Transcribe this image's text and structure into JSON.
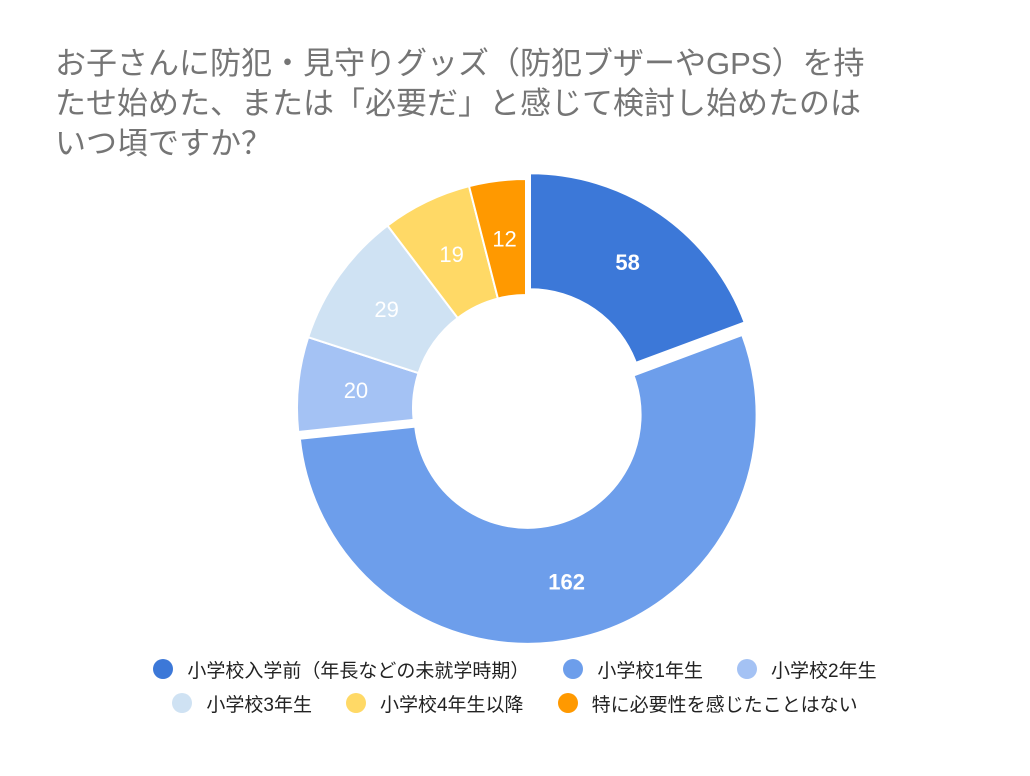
{
  "chart_data": {
    "type": "pie",
    "donut": true,
    "title_lines": [
      "お子さんに防犯・見守りグッズ（防犯ブザーやGPS）を持",
      "たせ始めた、または「必要だ」と感じて検討し始めたのは",
      "いつ頃ですか？"
    ],
    "categories": [
      "小学校入学前（年長などの未就学時期）",
      "小学校1年生",
      "小学校2年生",
      "小学校3年生",
      "小学校4年生以降",
      "特に必要性を感じたことはない"
    ],
    "values": [
      58,
      162,
      20,
      29,
      19,
      12
    ],
    "colors": [
      "#3c78d8",
      "#6d9eeb",
      "#a4c2f4",
      "#cfe2f3",
      "#ffd966",
      "#ff9900"
    ],
    "exploded": [
      true,
      true,
      false,
      false,
      false,
      false
    ],
    "legend_position": "bottom",
    "data_labels": true
  }
}
